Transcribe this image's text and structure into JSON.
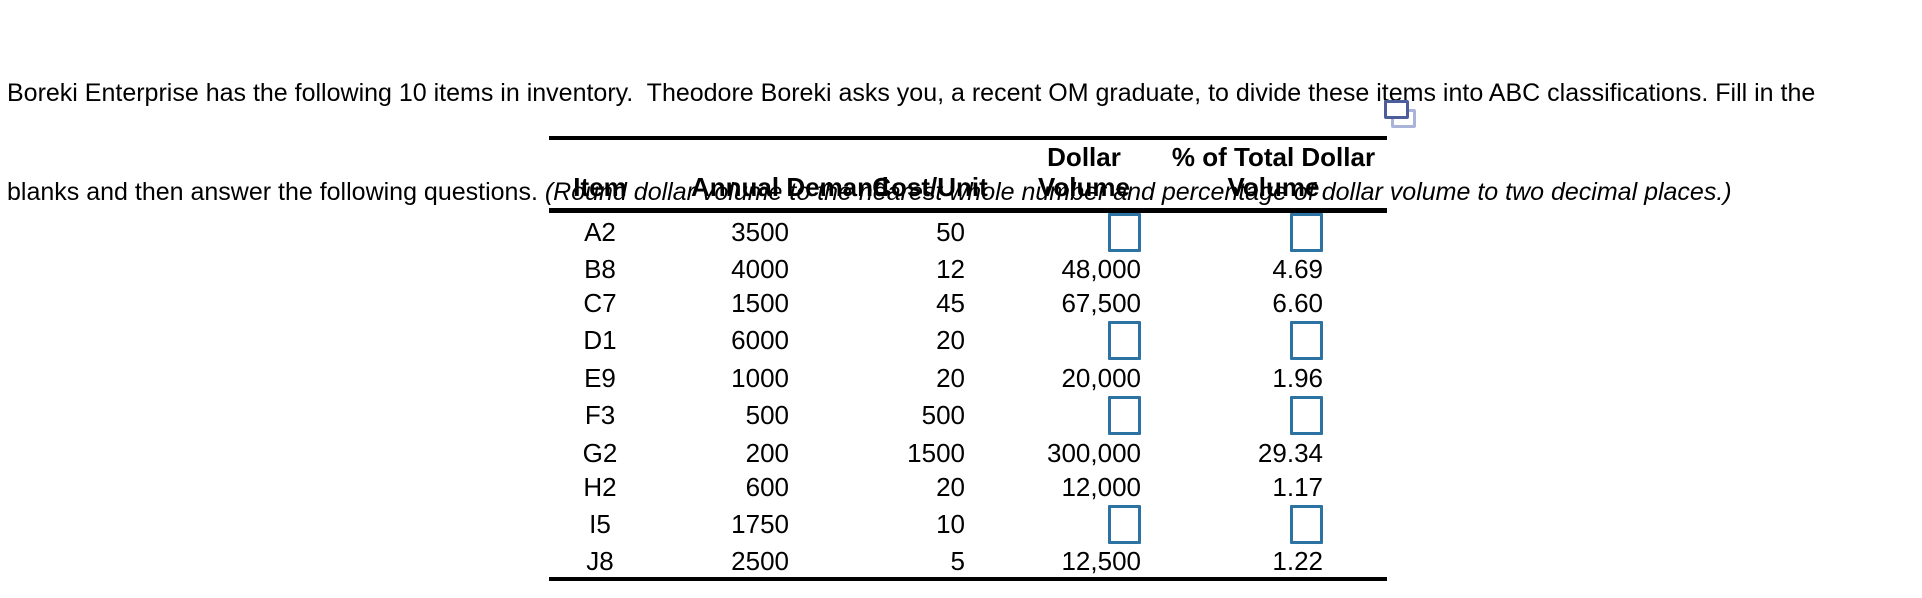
{
  "instructions": {
    "line1": "Boreki Enterprise has the following 10 items in inventory.  Theodore Boreki asks you, a recent OM graduate, to divide these items into ABC classifications. Fill in the",
    "line2_normal": "blanks and then answer the following questions. ",
    "line2_italic": "(Round dollar volume to the nearest whole number and percentage of dollar volume to two decimal places.)"
  },
  "icons": {
    "copy_table_icon": "duplicate-window-popout"
  },
  "colors": {
    "input_border": "#2c73a3",
    "icon_front_border": "#4d5c9b",
    "icon_back_border": "#a9b4d8",
    "text": "#000000",
    "table_rule": "#000000"
  },
  "table": {
    "columns": [
      {
        "label": "Item"
      },
      {
        "label": "Annual Demand"
      },
      {
        "label": "Cost/Unit"
      },
      {
        "label_line1": "Dollar",
        "label_line2": "Volume"
      },
      {
        "label_line1": "% of Total Dollar",
        "label_line2": "Volume"
      }
    ],
    "rows": [
      {
        "item": "A2",
        "annual_demand": "3500",
        "cost_unit": "50",
        "dollar_volume": "",
        "pct_of_total": ""
      },
      {
        "item": "B8",
        "annual_demand": "4000",
        "cost_unit": "12",
        "dollar_volume": "48,000",
        "pct_of_total": "4.69"
      },
      {
        "item": "C7",
        "annual_demand": "1500",
        "cost_unit": "45",
        "dollar_volume": "67,500",
        "pct_of_total": "6.60"
      },
      {
        "item": "D1",
        "annual_demand": "6000",
        "cost_unit": "20",
        "dollar_volume": "",
        "pct_of_total": ""
      },
      {
        "item": "E9",
        "annual_demand": "1000",
        "cost_unit": "20",
        "dollar_volume": "20,000",
        "pct_of_total": "1.96"
      },
      {
        "item": "F3",
        "annual_demand": "500",
        "cost_unit": "500",
        "dollar_volume": "",
        "pct_of_total": ""
      },
      {
        "item": "G2",
        "annual_demand": "200",
        "cost_unit": "1500",
        "dollar_volume": "300,000",
        "pct_of_total": "29.34"
      },
      {
        "item": "H2",
        "annual_demand": "600",
        "cost_unit": "20",
        "dollar_volume": "12,000",
        "pct_of_total": "1.17"
      },
      {
        "item": "I5",
        "annual_demand": "1750",
        "cost_unit": "10",
        "dollar_volume": "",
        "pct_of_total": ""
      },
      {
        "item": "J8",
        "annual_demand": "2500",
        "cost_unit": "5",
        "dollar_volume": "12,500",
        "pct_of_total": "1.22"
      }
    ]
  }
}
